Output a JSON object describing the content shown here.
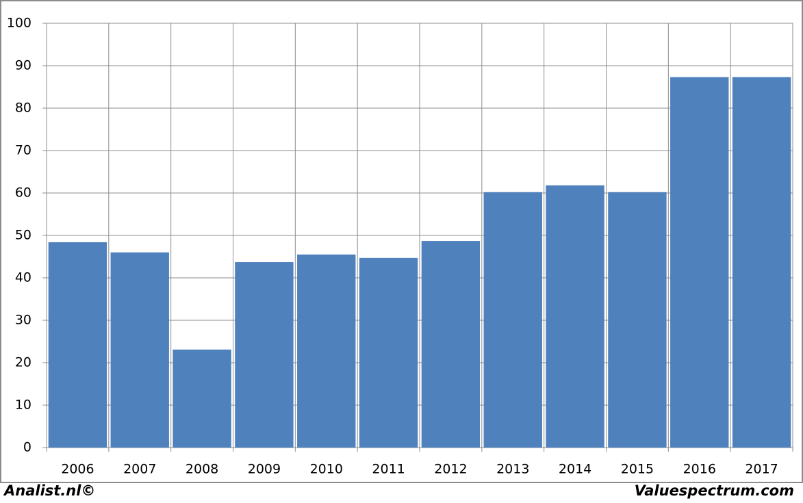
{
  "chart_data": {
    "type": "bar",
    "categories": [
      "2006",
      "2007",
      "2008",
      "2009",
      "2010",
      "2011",
      "2012",
      "2013",
      "2014",
      "2015",
      "2016",
      "2017"
    ],
    "values": [
      48.4,
      46.0,
      23.1,
      43.7,
      45.5,
      44.7,
      48.7,
      60.2,
      61.8,
      60.2,
      87.3,
      87.3
    ],
    "color": "#4f81bd",
    "ylim": [
      0,
      100
    ],
    "yticks": [
      0,
      10,
      20,
      30,
      40,
      50,
      60,
      70,
      80,
      90,
      100
    ],
    "grid": true
  },
  "footer": {
    "left": "Analist.nl©",
    "right": "Valuespectrum.com"
  }
}
